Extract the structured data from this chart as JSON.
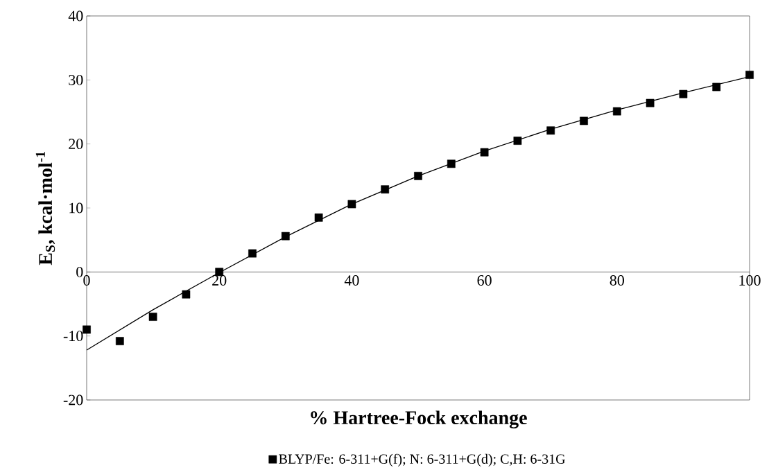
{
  "chart_data": {
    "type": "scatter",
    "xlabel": "% Hartree-Fock exchange",
    "ylabel": "E$_{S}$, kcal·mol$^{-1}$",
    "xlim": [
      0,
      100
    ],
    "ylim": [
      -20,
      40
    ],
    "xticks": [
      0,
      20,
      40,
      60,
      80,
      100
    ],
    "yticks": [
      -20,
      -10,
      0,
      10,
      20,
      30,
      40
    ],
    "grid": false,
    "legend": "bottom",
    "marker": "square",
    "series": [
      {
        "name": "BLYP/Fe: 6-311+G(f); N: 6-311+G(d); C,H: 6-31G",
        "color": "#000000",
        "x": [
          0,
          5,
          10,
          15,
          20,
          25,
          30,
          35,
          40,
          45,
          50,
          55,
          60,
          65,
          70,
          75,
          80,
          85,
          90,
          95,
          100
        ],
        "values": [
          -9.0,
          -10.8,
          -7.0,
          -3.5,
          0.0,
          2.9,
          5.6,
          8.5,
          10.6,
          12.9,
          15.0,
          16.9,
          18.7,
          20.5,
          22.1,
          23.6,
          25.1,
          26.4,
          27.8,
          28.9,
          30.8
        ]
      },
      {
        "type": "line",
        "color": "#000000",
        "marker": "none",
        "line_style": "solid",
        "x": [
          0,
          10,
          20,
          30,
          40,
          50,
          60,
          70,
          80,
          90,
          100
        ],
        "values": [
          -12.2,
          -5.9,
          -0.1,
          5.5,
          10.6,
          15.0,
          18.9,
          22.3,
          25.3,
          28.0,
          30.5
        ]
      }
    ]
  }
}
